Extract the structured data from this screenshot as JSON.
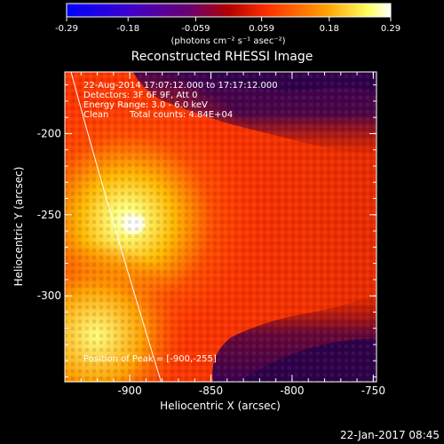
{
  "colorbar": {
    "ticks": [
      "-0.29",
      "-0.18",
      "-0.059",
      "0.059",
      "0.18",
      "0.29"
    ],
    "units": "(photons cm⁻² s⁻¹ asec⁻²)",
    "range": [
      -0.29,
      0.29
    ],
    "stops": [
      "#0000ff",
      "#5a00c8",
      "#a00000",
      "#ff2000",
      "#ff9000",
      "#ffffff"
    ]
  },
  "title": "Reconstructed RHESSI Image",
  "info": {
    "line1": "22-Aug-2014 17:07:12.000 to 17:17:12.000",
    "line2": "Detectors: 3F 6F 9F, Att 0",
    "line3": "Energy Range: 3.0 - 6.0 keV",
    "line4_a": "Clean",
    "line4_b": "Total counts: 4.84E+04"
  },
  "peak_label": "Position of Peak = [-900,-255]",
  "footer_timestamp": "22-Jan-2017 08:45",
  "chart_data": {
    "type": "heatmap",
    "title": "Reconstructed RHESSI Image",
    "xlabel": "Heliocentric X (arcsec)",
    "ylabel": "Heliocentric Y (arcsec)",
    "xlim": [
      -940,
      -748
    ],
    "ylim": [
      -353,
      -162
    ],
    "x_ticks": [
      "-900",
      "-850",
      "-800",
      "-750"
    ],
    "y_ticks": [
      "-200",
      "-250",
      "-300"
    ],
    "x_tick_values": [
      -900,
      -850,
      -800,
      -750
    ],
    "y_tick_values": [
      -200,
      -250,
      -300
    ],
    "peak": {
      "x": -900,
      "y": -255
    },
    "colormap": "rhessi-blue-red-white",
    "grid": false
  }
}
